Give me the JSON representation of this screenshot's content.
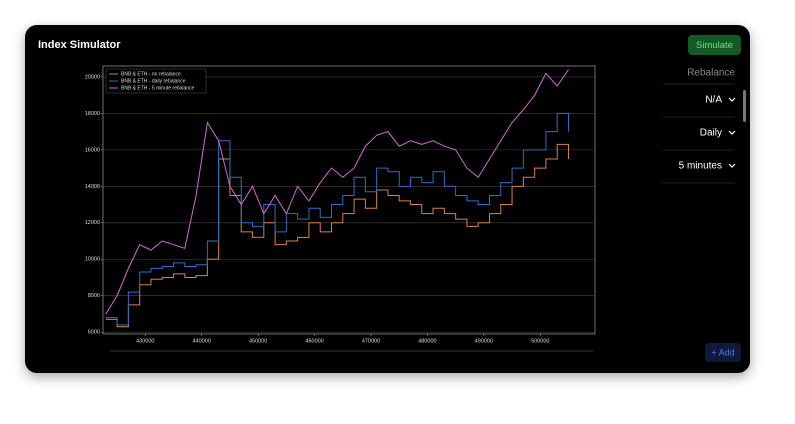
{
  "ui": {
    "title": "Index Simulator",
    "simulate_button": "Simulate",
    "panel_header": "Rebalance",
    "rebalance_options": [
      "N/A",
      "Daily",
      "5 minutes"
    ],
    "add_button": "+ Add"
  },
  "chart_data": {
    "type": "line",
    "x": [
      423000,
      425000,
      427000,
      429000,
      431000,
      433000,
      435000,
      437000,
      439000,
      441000,
      443000,
      445000,
      447000,
      449000,
      451000,
      453000,
      455000,
      457000,
      459000,
      461000,
      463000,
      465000,
      467000,
      469000,
      471000,
      473000,
      475000,
      477000,
      479000,
      481000,
      483000,
      485000,
      487000,
      489000,
      491000,
      493000,
      495000,
      497000,
      499000,
      501000,
      503000,
      505000
    ],
    "series": [
      {
        "name": "BNB & ETH - no rebalance",
        "color": "#d9843a",
        "drawstyle": "steps-post",
        "values": [
          6700,
          6300,
          7500,
          8600,
          8900,
          9000,
          9200,
          9000,
          9100,
          10000,
          15500,
          13500,
          11500,
          11200,
          12000,
          10800,
          11000,
          11200,
          12000,
          11500,
          12000,
          12500,
          13300,
          12800,
          13800,
          13500,
          13200,
          13000,
          12500,
          12800,
          12500,
          12200,
          11800,
          12000,
          12500,
          13000,
          14000,
          14500,
          15000,
          15500,
          16300,
          15500
        ]
      },
      {
        "name": "BNB & ETH - daily rebalance",
        "color": "#2a6fc9",
        "drawstyle": "steps-post",
        "values": [
          6800,
          6400,
          8200,
          9300,
          9500,
          9600,
          9800,
          9600,
          9700,
          11000,
          16500,
          14500,
          12000,
          11800,
          13000,
          11500,
          12500,
          12200,
          12800,
          12300,
          13000,
          13500,
          14500,
          13700,
          15000,
          14800,
          14000,
          14500,
          14200,
          14800,
          14000,
          13500,
          13200,
          13000,
          13500,
          14200,
          15000,
          16000,
          16000,
          17000,
          18000,
          17000
        ]
      },
      {
        "name": "BNB & ETH - 5 minute rebalance",
        "color": "#d56ad8",
        "values": [
          7000,
          8000,
          9500,
          10800,
          10500,
          11000,
          10800,
          10600,
          13500,
          17500,
          16500,
          14000,
          13000,
          14000,
          12500,
          13500,
          12500,
          14000,
          13200,
          14200,
          15000,
          14500,
          15000,
          16200,
          16800,
          17000,
          16200,
          16500,
          16300,
          16500,
          16200,
          16000,
          15000,
          14500,
          15500,
          16500,
          17500,
          18200,
          19000,
          20200,
          19500,
          20400
        ]
      }
    ],
    "xlim": [
      422500,
      509700
    ],
    "ylim": [
      5900,
      20600
    ],
    "xticks": [
      430000,
      440000,
      450000,
      460000,
      470000,
      480000,
      490000,
      500000
    ],
    "yticks": [
      6000,
      8000,
      10000,
      12000,
      14000,
      16000,
      18000,
      20000
    ],
    "grid": true,
    "legend": "upper left"
  }
}
